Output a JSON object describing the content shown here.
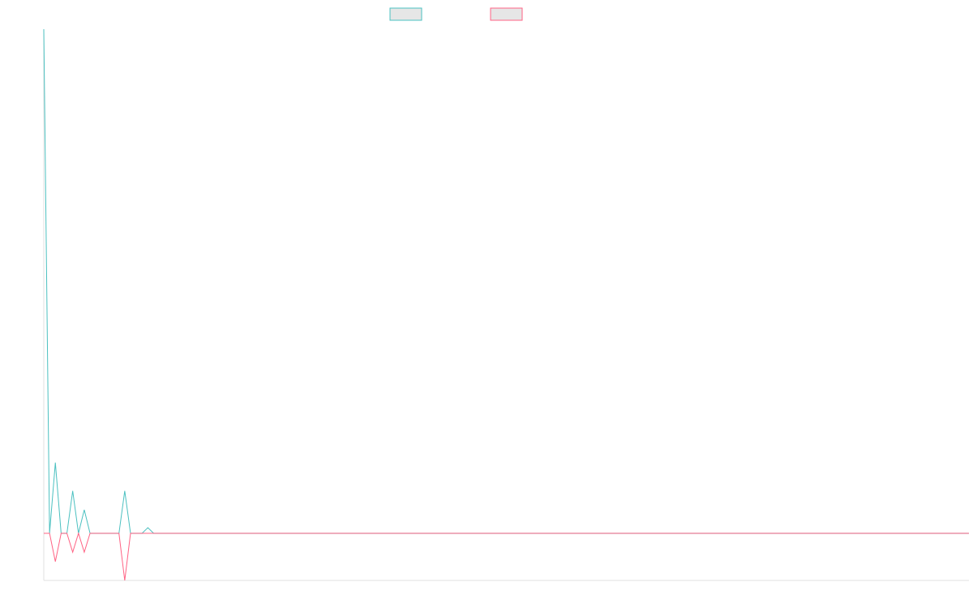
{
  "chart_data": {
    "type": "line",
    "title": "",
    "xlabel": "",
    "ylabel": "",
    "grid": false,
    "legend": "top-center",
    "x": [
      0,
      1,
      2,
      3,
      4,
      5,
      6,
      7,
      8,
      9,
      10,
      11,
      12,
      13,
      14,
      15,
      16,
      17,
      18,
      19,
      20,
      21,
      22,
      23,
      24,
      25,
      26,
      27,
      28,
      29,
      30,
      31,
      32,
      33,
      34,
      35,
      36,
      37,
      38,
      39,
      40,
      41,
      42,
      43,
      44,
      45,
      46,
      47,
      48,
      49,
      50,
      51,
      52,
      53,
      54,
      55,
      56,
      57,
      58,
      59,
      60,
      61,
      62,
      63,
      64,
      65,
      66,
      67,
      68,
      69,
      70,
      71,
      72,
      73,
      74,
      75,
      76,
      77,
      78,
      79,
      80,
      81,
      82,
      83,
      84,
      85,
      86,
      87,
      88,
      89,
      90,
      91,
      92,
      93,
      94,
      95,
      96,
      97,
      98,
      99,
      100,
      101,
      102,
      103,
      104,
      105,
      106,
      107,
      108,
      109,
      110,
      111,
      112,
      113,
      114,
      115,
      116,
      117,
      118,
      119,
      120,
      121,
      122,
      123,
      124,
      125,
      126,
      127,
      128,
      129,
      130,
      131,
      132,
      133,
      134,
      135,
      136,
      137,
      138,
      139,
      140,
      141,
      142,
      143,
      144,
      145,
      146,
      147,
      148,
      149,
      150,
      151,
      152,
      153,
      154,
      155,
      156,
      157,
      158,
      159,
      160
    ],
    "xlim": [
      0,
      160
    ],
    "ylim": [
      -10,
      107
    ],
    "series": [
      {
        "name": "",
        "color": "#4bc0c0",
        "values": [
          107,
          0,
          15,
          0,
          0,
          9,
          0,
          5,
          0,
          0,
          0,
          0,
          0,
          0,
          9,
          0,
          0,
          0,
          1.2,
          0,
          0,
          0,
          0,
          0,
          0,
          0,
          0,
          0,
          0,
          0,
          0,
          0,
          0,
          0,
          0,
          0,
          0,
          0,
          0,
          0,
          0,
          0,
          0,
          0,
          0,
          0,
          0,
          0,
          0,
          0,
          0,
          0,
          0,
          0,
          0,
          0,
          0,
          0,
          0,
          0,
          0,
          0,
          0,
          0,
          0,
          0,
          0,
          0,
          0,
          0,
          0,
          0,
          0,
          0,
          0,
          0,
          0,
          0,
          0,
          0,
          0,
          0,
          0,
          0,
          0,
          0,
          0,
          0,
          0,
          0,
          0,
          0,
          0,
          0,
          0,
          0,
          0,
          0,
          0,
          0,
          0,
          0,
          0,
          0,
          0,
          0,
          0,
          0,
          0,
          0,
          0,
          0,
          0,
          0,
          0,
          0,
          0,
          0,
          0,
          0,
          0,
          0,
          0,
          0,
          0,
          0,
          0,
          0,
          0,
          0,
          0,
          0,
          0,
          0,
          0,
          0,
          0,
          0,
          0,
          0,
          0,
          0,
          0,
          0,
          0,
          0,
          0,
          0,
          0,
          0,
          0,
          0,
          0,
          0,
          0,
          0,
          0,
          0,
          0,
          0,
          0
        ]
      },
      {
        "name": "",
        "color": "#ff6384",
        "values": [
          0,
          0,
          -6,
          0,
          0,
          -4,
          0,
          -4,
          0,
          0,
          0,
          0,
          0,
          0,
          -10,
          0,
          0,
          0,
          0,
          0,
          0,
          0,
          0,
          0,
          0,
          0,
          0,
          0,
          0,
          0,
          0,
          0,
          0,
          0,
          0,
          0,
          0,
          0,
          0,
          0,
          0,
          0,
          0,
          0,
          0,
          0,
          0,
          0,
          0,
          0,
          0,
          0,
          0,
          0,
          0,
          0,
          0,
          0,
          0,
          0,
          0,
          0,
          0,
          0,
          0,
          0,
          0,
          0,
          0,
          0,
          0,
          0,
          0,
          0,
          0,
          0,
          0,
          0,
          0,
          0,
          0,
          0,
          0,
          0,
          0,
          0,
          0,
          0,
          0,
          0,
          0,
          0,
          0,
          0,
          0,
          0,
          0,
          0,
          0,
          0,
          0,
          0,
          0,
          0,
          0,
          0,
          0,
          0,
          0,
          0,
          0,
          0,
          0,
          0,
          0,
          0,
          0,
          0,
          0,
          0,
          0,
          0,
          0,
          0,
          0,
          0,
          0,
          0,
          0,
          0,
          0,
          0,
          0,
          0,
          0,
          0,
          0,
          0,
          0,
          0,
          0,
          0,
          0,
          0,
          0,
          0,
          0,
          0,
          0,
          0,
          0,
          0,
          0,
          0,
          0,
          0,
          0,
          0,
          0,
          0,
          0
        ]
      }
    ]
  }
}
